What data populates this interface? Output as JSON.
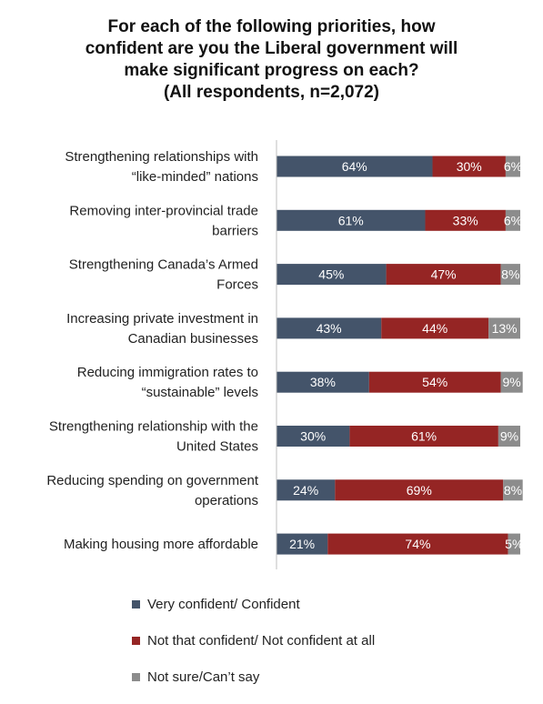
{
  "chart_data": {
    "type": "bar",
    "orientation": "horizontal",
    "stacked": true,
    "title_lines": [
      "For each of the following priorities, how",
      "confident are you the Liberal government will",
      "make significant progress on each?",
      "(All respondents, n=2,072)"
    ],
    "categories": [
      [
        "Strengthening relationships with",
        "“like-minded” nations"
      ],
      [
        "Removing inter-provincial trade",
        "barriers"
      ],
      [
        "Strengthening Canada’s Armed",
        "Forces"
      ],
      [
        "Increasing private investment in",
        "Canadian businesses"
      ],
      [
        "Reducing immigration rates to",
        "“sustainable” levels"
      ],
      [
        "Strengthening relationship with the",
        "United States"
      ],
      [
        "Reducing spending on government",
        "operations"
      ],
      [
        "Making housing more affordable"
      ]
    ],
    "series": [
      {
        "name": "Very confident/ Confident",
        "color": "#44546a",
        "values": [
          64,
          61,
          45,
          43,
          38,
          30,
          24,
          21
        ]
      },
      {
        "name": "Not that confident/ Not confident at all",
        "color": "#952524",
        "values": [
          30,
          33,
          47,
          44,
          54,
          61,
          69,
          74
        ]
      },
      {
        "name": "Not sure/Can’t say",
        "color": "#8c8c8c",
        "values": [
          6,
          6,
          8,
          13,
          9,
          9,
          8,
          5
        ]
      }
    ],
    "value_suffix": "%",
    "xlim": [
      0,
      100
    ],
    "legend_position": "bottom"
  }
}
